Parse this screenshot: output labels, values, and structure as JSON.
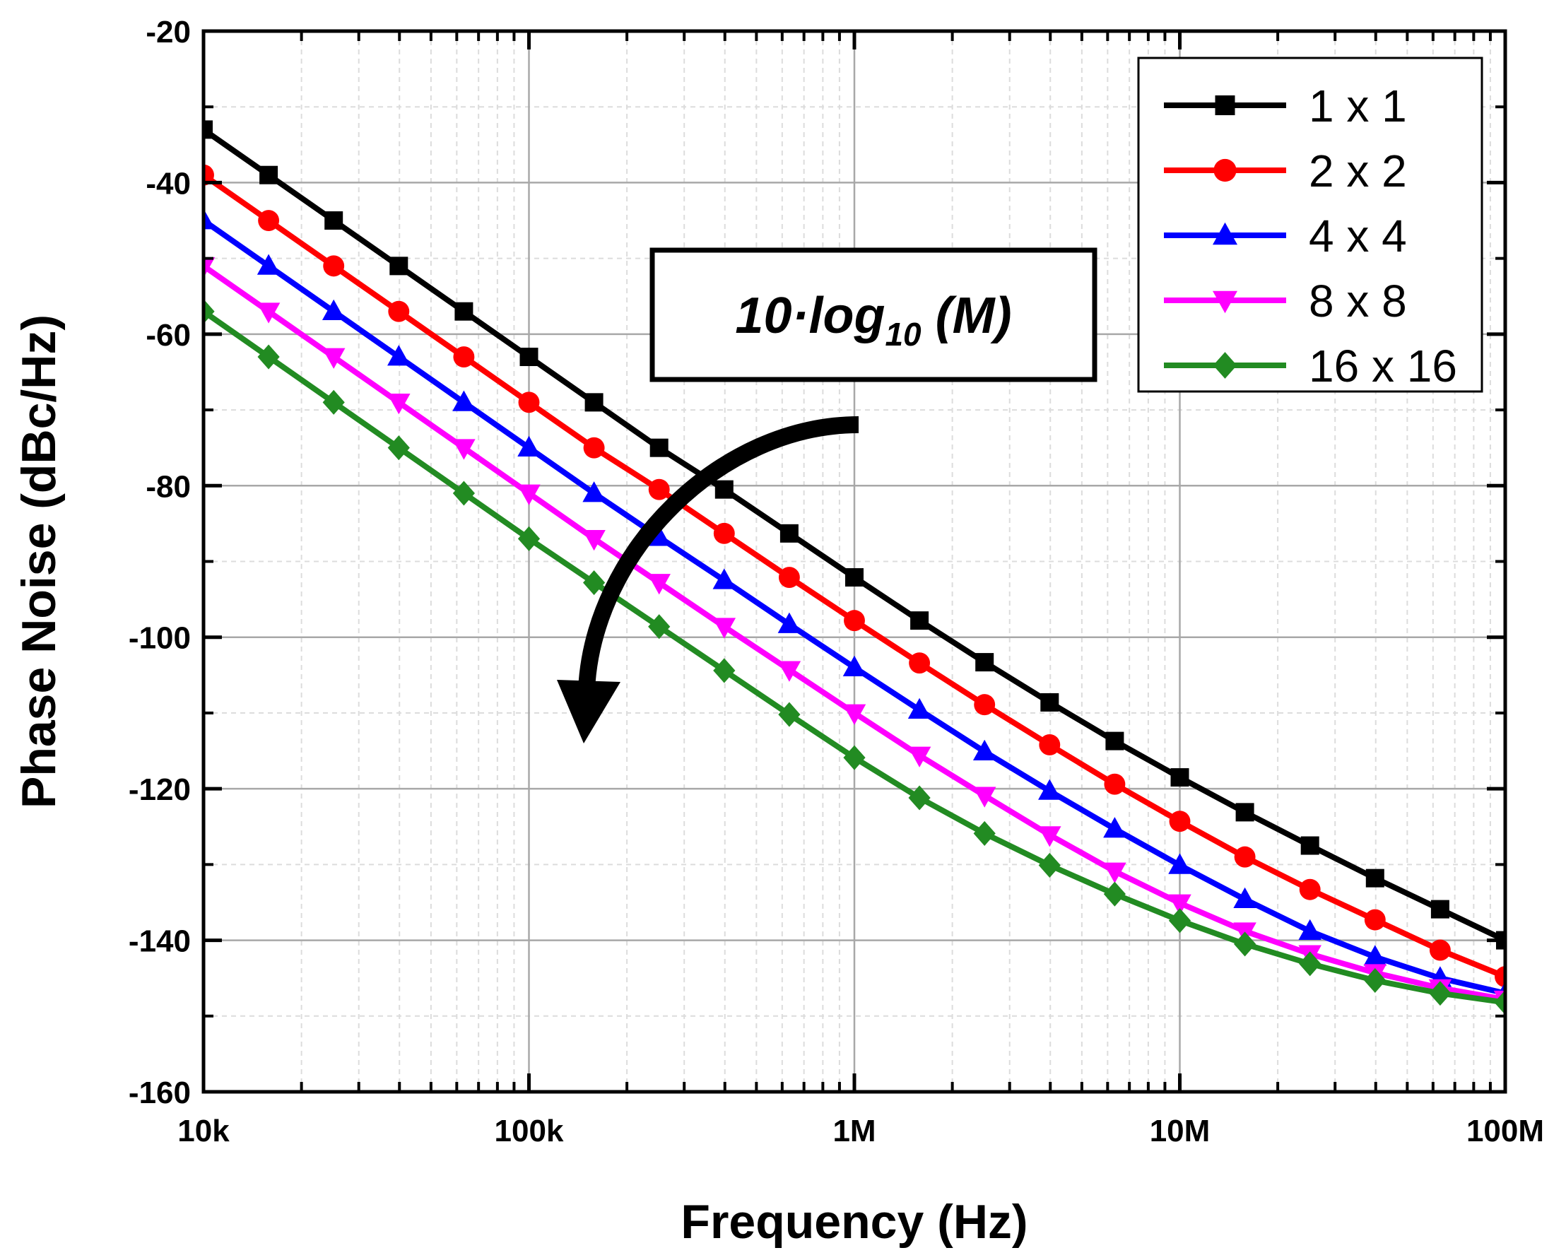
{
  "chart_data": {
    "type": "line",
    "xscale": "log",
    "xlabel": "Frequency (Hz)",
    "ylabel": "Phase Noise (dBc/Hz)",
    "xlim": [
      10000,
      100000000
    ],
    "ylim": [
      -160,
      -20
    ],
    "x_ticks": [
      10000,
      100000,
      1000000,
      10000000,
      100000000
    ],
    "x_tick_labels": [
      "10k",
      "100k",
      "1M",
      "10M",
      "100M"
    ],
    "y_ticks": [
      -20,
      -40,
      -60,
      -80,
      -100,
      -120,
      -140,
      -160
    ],
    "y_tick_labels": [
      "-20",
      "-40",
      "-60",
      "-80",
      "-100",
      "-120",
      "-140",
      "-160"
    ],
    "grid": true,
    "legend_position": "top-right",
    "x": [
      10000,
      15849,
      25119,
      39811,
      63096,
      100000,
      158489,
      251189,
      398107,
      630957,
      1000000,
      1584893,
      2511886,
      3981072,
      6309573,
      10000000,
      15848932,
      25118864,
      39810717,
      63095734,
      100000000
    ],
    "series": [
      {
        "name": "1 x 1",
        "color": "#000000",
        "marker": "square",
        "values": [
          -33,
          -39,
          -45,
          -51,
          -57,
          -63,
          -69,
          -75,
          -80.5,
          -86.3,
          -92.1,
          -97.8,
          -103.3,
          -108.6,
          -113.7,
          -118.5,
          -123.1,
          -127.5,
          -131.8,
          -135.9,
          -140
        ]
      },
      {
        "name": "2 x 2",
        "color": "#ff0000",
        "marker": "circle",
        "values": [
          -39,
          -45,
          -51,
          -57,
          -63,
          -69,
          -75,
          -80.5,
          -86.3,
          -92.1,
          -97.8,
          -103.4,
          -108.9,
          -114.2,
          -119.4,
          -124.3,
          -129,
          -133.3,
          -137.3,
          -141.3,
          -144.8
        ]
      },
      {
        "name": "4 x 4",
        "color": "#0000ff",
        "marker": "triangle-up",
        "values": [
          -45,
          -51,
          -57,
          -63,
          -69,
          -75,
          -81,
          -86.8,
          -92.5,
          -98.3,
          -104,
          -109.6,
          -115.1,
          -120.3,
          -125.3,
          -130.1,
          -134.6,
          -138.8,
          -142.2,
          -145,
          -147
        ]
      },
      {
        "name": "8 x 8",
        "color": "#ff00ff",
        "marker": "triangle-down",
        "values": [
          -51,
          -57,
          -63,
          -69,
          -75,
          -81,
          -87,
          -92.8,
          -98.6,
          -104.3,
          -110,
          -115.6,
          -120.9,
          -126.1,
          -130.9,
          -135.1,
          -138.8,
          -141.8,
          -144.3,
          -146.3,
          -147.8
        ]
      },
      {
        "name": "16 x 16",
        "color": "#228b22",
        "marker": "diamond",
        "values": [
          -57,
          -63,
          -69,
          -75,
          -81,
          -87,
          -92.8,
          -98.6,
          -104.4,
          -110.2,
          -115.9,
          -121.2,
          -125.9,
          -130.1,
          -133.9,
          -137.4,
          -140.5,
          -143.1,
          -145.3,
          -147,
          -148.2
        ]
      }
    ],
    "annotation": {
      "text_main": "10·log",
      "text_sub": "10",
      "text_tail": " (M)"
    }
  }
}
